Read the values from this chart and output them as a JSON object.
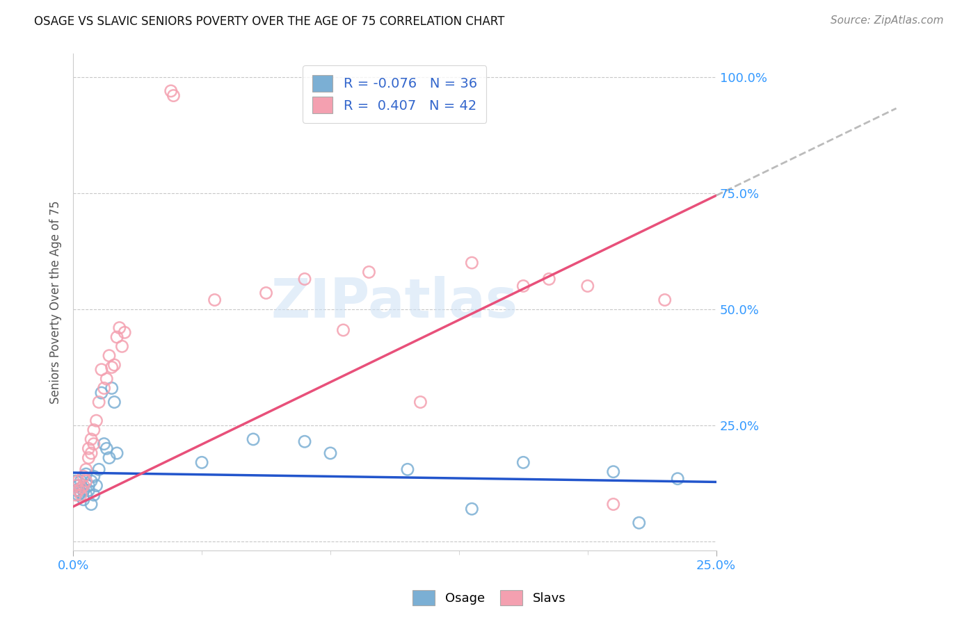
{
  "title": "OSAGE VS SLAVIC SENIORS POVERTY OVER THE AGE OF 75 CORRELATION CHART",
  "source": "Source: ZipAtlas.com",
  "ylabel": "Seniors Poverty Over the Age of 75",
  "xlim": [
    0.0,
    0.25
  ],
  "ylim": [
    -0.02,
    1.05
  ],
  "osage_color": "#7bafd4",
  "slavs_color": "#f4a0b0",
  "osage_line_color": "#2255cc",
  "slavs_line_color": "#e8507a",
  "trend_ext_color": "#cccccc",
  "legend_r_osage": "-0.076",
  "legend_n_osage": "36",
  "legend_r_slavs": "0.407",
  "legend_n_slavs": "42",
  "watermark": "ZIPatlas",
  "osage_x": [
    0.001,
    0.001,
    0.002,
    0.002,
    0.003,
    0.003,
    0.003,
    0.004,
    0.004,
    0.005,
    0.005,
    0.006,
    0.006,
    0.007,
    0.007,
    0.008,
    0.008,
    0.009,
    0.01,
    0.011,
    0.012,
    0.013,
    0.014,
    0.015,
    0.016,
    0.017,
    0.05,
    0.07,
    0.09,
    0.1,
    0.13,
    0.155,
    0.175,
    0.21,
    0.22,
    0.235
  ],
  "osage_y": [
    0.13,
    0.11,
    0.12,
    0.1,
    0.13,
    0.115,
    0.105,
    0.11,
    0.09,
    0.145,
    0.1,
    0.12,
    0.11,
    0.13,
    0.08,
    0.14,
    0.1,
    0.12,
    0.155,
    0.32,
    0.21,
    0.2,
    0.18,
    0.33,
    0.3,
    0.19,
    0.17,
    0.22,
    0.215,
    0.19,
    0.155,
    0.07,
    0.17,
    0.15,
    0.04,
    0.135
  ],
  "slavs_x": [
    0.001,
    0.001,
    0.002,
    0.002,
    0.003,
    0.003,
    0.004,
    0.004,
    0.005,
    0.005,
    0.006,
    0.006,
    0.007,
    0.007,
    0.008,
    0.008,
    0.009,
    0.01,
    0.011,
    0.012,
    0.013,
    0.014,
    0.015,
    0.016,
    0.017,
    0.018,
    0.019,
    0.02,
    0.038,
    0.039,
    0.055,
    0.075,
    0.09,
    0.105,
    0.115,
    0.135,
    0.155,
    0.175,
    0.185,
    0.2,
    0.21,
    0.23
  ],
  "slavs_y": [
    0.1,
    0.12,
    0.11,
    0.13,
    0.115,
    0.1,
    0.14,
    0.12,
    0.13,
    0.155,
    0.18,
    0.2,
    0.22,
    0.19,
    0.24,
    0.21,
    0.26,
    0.3,
    0.37,
    0.33,
    0.35,
    0.4,
    0.375,
    0.38,
    0.44,
    0.46,
    0.42,
    0.45,
    0.97,
    0.96,
    0.52,
    0.535,
    0.565,
    0.455,
    0.58,
    0.3,
    0.6,
    0.55,
    0.565,
    0.55,
    0.08,
    0.52
  ],
  "slavs_trend_x0": 0.0,
  "slavs_trend_y0": 0.075,
  "slavs_trend_x1": 0.25,
  "slavs_trend_y1": 0.745,
  "osage_trend_x0": 0.0,
  "osage_trend_y0": 0.148,
  "osage_trend_x1": 0.25,
  "osage_trend_y1": 0.128
}
